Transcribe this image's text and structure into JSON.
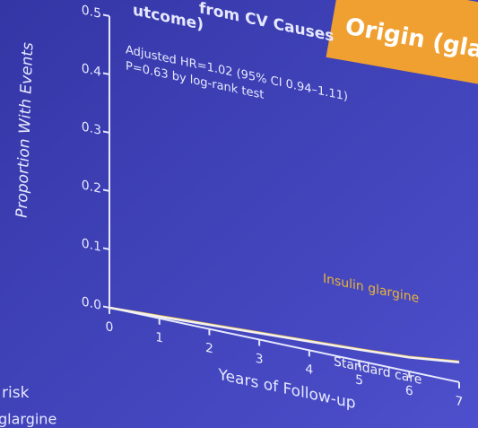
{
  "chart_data": {
    "type": "line",
    "title": "from CV Causes",
    "subtitle": "utcome)",
    "banner": "Origin (gla",
    "annotations": [
      "Adjusted HR=1.02 (95% CI 0.94–1.11)",
      "P=0.63 by log-rank test"
    ],
    "y_label": "Proportion With Events",
    "x_label": "Years of Follow-up",
    "risk_table": {
      "title": "risk",
      "rows": [
        "glargine"
      ]
    },
    "x": [
      0,
      1,
      2,
      3,
      4,
      5,
      6,
      7
    ],
    "series": [
      {
        "name": "Insulin glargine",
        "color": "#e8b436",
        "values": [
          0,
          0.004,
          0.008,
          0.012,
          0.016,
          0.02,
          0.025,
          0.035
        ]
      },
      {
        "name": "Standard care",
        "color": "#f2f2f2",
        "values": [
          0,
          0.003,
          0.007,
          0.011,
          0.015,
          0.019,
          0.024,
          0.034
        ]
      }
    ],
    "xlim": [
      0,
      7
    ],
    "xticks": [
      0,
      1,
      2,
      3,
      4,
      5,
      6,
      7
    ],
    "ylim": [
      0,
      0.5
    ],
    "yticks": [
      {
        "value": 0,
        "label": "0.0"
      },
      0.1,
      0.2,
      0.3,
      0.4,
      0.5
    ]
  }
}
